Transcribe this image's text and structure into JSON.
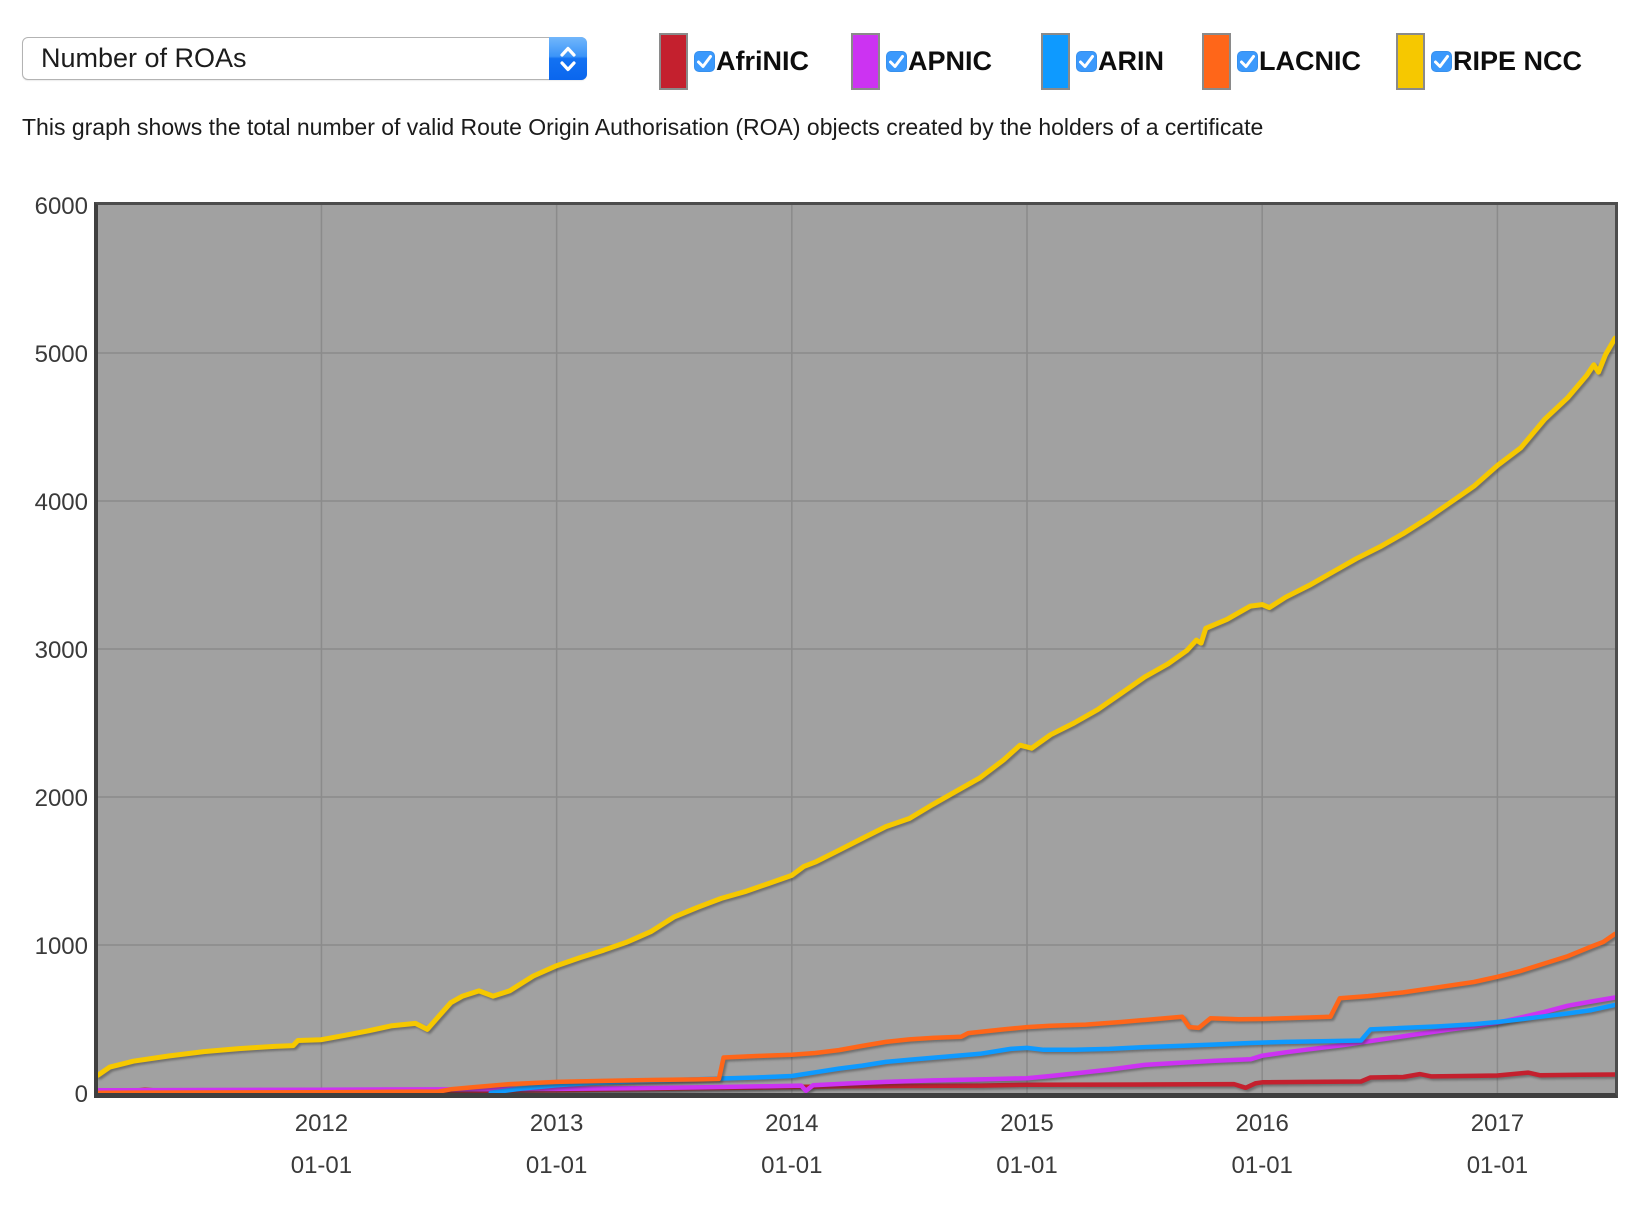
{
  "controls": {
    "metric_select_value": "Number of ROAs"
  },
  "icons": {
    "select_stepper": "up-down-chevrons",
    "checkbox_glyph": "checkmark"
  },
  "description": "This graph shows the total number of valid Route Origin Authorisation (ROA) objects created by the holders of a certificate",
  "legend": [
    {
      "label": "AfriNIC",
      "color": "#c4202e",
      "checked": true
    },
    {
      "label": "APNIC",
      "color": "#cc33f2",
      "checked": true
    },
    {
      "label": "ARIN",
      "color": "#0e9aff",
      "checked": true
    },
    {
      "label": "LACNIC",
      "color": "#ff6619",
      "checked": true
    },
    {
      "label": "RIPE NCC",
      "color": "#f6c800",
      "checked": true
    }
  ],
  "checkbox_color": "#3b99fc",
  "chart_data": {
    "type": "line",
    "title": "Number of ROAs",
    "xlabel": "",
    "ylabel": "",
    "ylim": [
      0,
      6000
    ],
    "xlim": [
      2011.05,
      2017.5
    ],
    "grid": true,
    "plot_bg": "#a1a1a1",
    "grid_color": "#8b8b8b",
    "y_ticks": [
      6000,
      5000,
      4000,
      3000,
      2000,
      1000,
      0
    ],
    "x_ticks": [
      {
        "label": "2012",
        "sub": "01-01",
        "value": 2012
      },
      {
        "label": "2013",
        "sub": "01-01",
        "value": 2013
      },
      {
        "label": "2014",
        "sub": "01-01",
        "value": 2014
      },
      {
        "label": "2015",
        "sub": "01-01",
        "value": 2015
      },
      {
        "label": "2016",
        "sub": "01-01",
        "value": 2016
      },
      {
        "label": "2017",
        "sub": "01-01",
        "value": 2017
      }
    ],
    "series": [
      {
        "name": "AfriNIC",
        "color": "#c4202e",
        "width": 4.5,
        "points": [
          [
            2011.05,
            3
          ],
          [
            2011.15,
            8
          ],
          [
            2011.25,
            22
          ],
          [
            2011.35,
            12
          ],
          [
            2011.6,
            10
          ],
          [
            2012.0,
            10
          ],
          [
            2012.4,
            12
          ],
          [
            2012.7,
            15
          ],
          [
            2013.0,
            18
          ],
          [
            2013.3,
            25
          ],
          [
            2013.6,
            32
          ],
          [
            2013.9,
            38
          ],
          [
            2014.2,
            45
          ],
          [
            2014.5,
            48
          ],
          [
            2014.8,
            50
          ],
          [
            2015.0,
            56
          ],
          [
            2015.3,
            57
          ],
          [
            2015.6,
            58
          ],
          [
            2015.88,
            60
          ],
          [
            2015.93,
            35
          ],
          [
            2015.97,
            65
          ],
          [
            2016.0,
            72
          ],
          [
            2016.2,
            75
          ],
          [
            2016.42,
            78
          ],
          [
            2016.46,
            105
          ],
          [
            2016.6,
            108
          ],
          [
            2016.67,
            128
          ],
          [
            2016.72,
            112
          ],
          [
            2016.85,
            115
          ],
          [
            2017.0,
            118
          ],
          [
            2017.13,
            138
          ],
          [
            2017.18,
            120
          ],
          [
            2017.35,
            123
          ],
          [
            2017.5,
            125
          ]
        ]
      },
      {
        "name": "APNIC",
        "color": "#cc33f2",
        "width": 4.5,
        "points": [
          [
            2011.05,
            18
          ],
          [
            2011.5,
            20
          ],
          [
            2012.0,
            22
          ],
          [
            2012.5,
            24
          ],
          [
            2013.0,
            28
          ],
          [
            2013.3,
            32
          ],
          [
            2013.6,
            38
          ],
          [
            2013.9,
            46
          ],
          [
            2014.04,
            50
          ],
          [
            2014.06,
            15
          ],
          [
            2014.09,
            52
          ],
          [
            2014.25,
            65
          ],
          [
            2014.4,
            75
          ],
          [
            2014.6,
            85
          ],
          [
            2014.8,
            92
          ],
          [
            2015.0,
            100
          ],
          [
            2015.1,
            115
          ],
          [
            2015.2,
            132
          ],
          [
            2015.35,
            158
          ],
          [
            2015.5,
            190
          ],
          [
            2015.65,
            205
          ],
          [
            2015.8,
            218
          ],
          [
            2015.95,
            228
          ],
          [
            2016.0,
            252
          ],
          [
            2016.1,
            275
          ],
          [
            2016.2,
            295
          ],
          [
            2016.35,
            325
          ],
          [
            2016.5,
            360
          ],
          [
            2016.65,
            395
          ],
          [
            2016.8,
            430
          ],
          [
            2016.9,
            450
          ],
          [
            2017.0,
            475
          ],
          [
            2017.1,
            510
          ],
          [
            2017.2,
            548
          ],
          [
            2017.3,
            590
          ],
          [
            2017.4,
            618
          ],
          [
            2017.5,
            645
          ]
        ]
      },
      {
        "name": "ARIN",
        "color": "#0e9aff",
        "width": 4.5,
        "points": [
          [
            2012.72,
            2
          ],
          [
            2012.78,
            15
          ],
          [
            2012.85,
            30
          ],
          [
            2013.0,
            52
          ],
          [
            2013.15,
            68
          ],
          [
            2013.3,
            78
          ],
          [
            2013.5,
            88
          ],
          [
            2013.7,
            98
          ],
          [
            2013.85,
            105
          ],
          [
            2014.0,
            115
          ],
          [
            2014.1,
            140
          ],
          [
            2014.2,
            165
          ],
          [
            2014.3,
            185
          ],
          [
            2014.4,
            210
          ],
          [
            2014.5,
            225
          ],
          [
            2014.65,
            245
          ],
          [
            2014.8,
            265
          ],
          [
            2014.93,
            298
          ],
          [
            2015.0,
            305
          ],
          [
            2015.07,
            292
          ],
          [
            2015.2,
            292
          ],
          [
            2015.35,
            298
          ],
          [
            2015.5,
            310
          ],
          [
            2015.65,
            318
          ],
          [
            2015.8,
            328
          ],
          [
            2015.95,
            338
          ],
          [
            2016.1,
            345
          ],
          [
            2016.25,
            350
          ],
          [
            2016.42,
            355
          ],
          [
            2016.46,
            430
          ],
          [
            2016.6,
            440
          ],
          [
            2016.75,
            450
          ],
          [
            2016.9,
            465
          ],
          [
            2017.0,
            480
          ],
          [
            2017.1,
            498
          ],
          [
            2017.2,
            518
          ],
          [
            2017.3,
            538
          ],
          [
            2017.4,
            560
          ],
          [
            2017.5,
            595
          ]
        ]
      },
      {
        "name": "LACNIC",
        "color": "#ff6619",
        "width": 4.5,
        "points": [
          [
            2011.05,
            2
          ],
          [
            2012.0,
            5
          ],
          [
            2012.5,
            10
          ],
          [
            2012.55,
            25
          ],
          [
            2012.65,
            40
          ],
          [
            2012.8,
            60
          ],
          [
            2013.0,
            75
          ],
          [
            2013.2,
            82
          ],
          [
            2013.4,
            88
          ],
          [
            2013.6,
            92
          ],
          [
            2013.69,
            95
          ],
          [
            2013.71,
            240
          ],
          [
            2013.85,
            250
          ],
          [
            2014.0,
            258
          ],
          [
            2014.1,
            270
          ],
          [
            2014.2,
            290
          ],
          [
            2014.3,
            318
          ],
          [
            2014.4,
            345
          ],
          [
            2014.5,
            362
          ],
          [
            2014.6,
            372
          ],
          [
            2014.72,
            380
          ],
          [
            2014.75,
            405
          ],
          [
            2014.9,
            430
          ],
          [
            2015.0,
            445
          ],
          [
            2015.1,
            455
          ],
          [
            2015.25,
            462
          ],
          [
            2015.4,
            480
          ],
          [
            2015.55,
            500
          ],
          [
            2015.66,
            515
          ],
          [
            2015.69,
            445
          ],
          [
            2015.73,
            440
          ],
          [
            2015.78,
            505
          ],
          [
            2015.9,
            498
          ],
          [
            2016.0,
            500
          ],
          [
            2016.1,
            505
          ],
          [
            2016.2,
            510
          ],
          [
            2016.29,
            515
          ],
          [
            2016.33,
            640
          ],
          [
            2016.45,
            655
          ],
          [
            2016.6,
            680
          ],
          [
            2016.75,
            715
          ],
          [
            2016.9,
            750
          ],
          [
            2017.0,
            785
          ],
          [
            2017.1,
            825
          ],
          [
            2017.2,
            875
          ],
          [
            2017.3,
            925
          ],
          [
            2017.4,
            990
          ],
          [
            2017.45,
            1020
          ],
          [
            2017.5,
            1075
          ]
        ]
      },
      {
        "name": "RIPE NCC",
        "color": "#f6c800",
        "width": 5,
        "points": [
          [
            2011.05,
            120
          ],
          [
            2011.1,
            175
          ],
          [
            2011.2,
            215
          ],
          [
            2011.35,
            250
          ],
          [
            2011.5,
            280
          ],
          [
            2011.65,
            300
          ],
          [
            2011.8,
            315
          ],
          [
            2011.88,
            320
          ],
          [
            2011.9,
            355
          ],
          [
            2012.0,
            360
          ],
          [
            2012.1,
            390
          ],
          [
            2012.2,
            420
          ],
          [
            2012.3,
            455
          ],
          [
            2012.4,
            470
          ],
          [
            2012.45,
            430
          ],
          [
            2012.5,
            520
          ],
          [
            2012.55,
            610
          ],
          [
            2012.6,
            655
          ],
          [
            2012.67,
            690
          ],
          [
            2012.73,
            655
          ],
          [
            2012.8,
            690
          ],
          [
            2012.9,
            790
          ],
          [
            2013.0,
            860
          ],
          [
            2013.1,
            915
          ],
          [
            2013.2,
            965
          ],
          [
            2013.3,
            1020
          ],
          [
            2013.4,
            1090
          ],
          [
            2013.5,
            1190
          ],
          [
            2013.6,
            1255
          ],
          [
            2013.7,
            1315
          ],
          [
            2013.8,
            1360
          ],
          [
            2013.9,
            1415
          ],
          [
            2014.0,
            1470
          ],
          [
            2014.05,
            1530
          ],
          [
            2014.1,
            1560
          ],
          [
            2014.2,
            1640
          ],
          [
            2014.3,
            1720
          ],
          [
            2014.4,
            1800
          ],
          [
            2014.5,
            1855
          ],
          [
            2014.6,
            1950
          ],
          [
            2014.7,
            2040
          ],
          [
            2014.8,
            2130
          ],
          [
            2014.9,
            2250
          ],
          [
            2014.97,
            2350
          ],
          [
            2015.02,
            2330
          ],
          [
            2015.1,
            2420
          ],
          [
            2015.2,
            2500
          ],
          [
            2015.3,
            2590
          ],
          [
            2015.4,
            2700
          ],
          [
            2015.5,
            2810
          ],
          [
            2015.6,
            2900
          ],
          [
            2015.68,
            2990
          ],
          [
            2015.72,
            3060
          ],
          [
            2015.74,
            3040
          ],
          [
            2015.76,
            3140
          ],
          [
            2015.85,
            3200
          ],
          [
            2015.95,
            3290
          ],
          [
            2016.0,
            3300
          ],
          [
            2016.03,
            3280
          ],
          [
            2016.1,
            3350
          ],
          [
            2016.2,
            3430
          ],
          [
            2016.3,
            3520
          ],
          [
            2016.4,
            3610
          ],
          [
            2016.5,
            3690
          ],
          [
            2016.6,
            3780
          ],
          [
            2016.7,
            3880
          ],
          [
            2016.8,
            3990
          ],
          [
            2016.9,
            4100
          ],
          [
            2017.0,
            4240
          ],
          [
            2017.1,
            4360
          ],
          [
            2017.2,
            4550
          ],
          [
            2017.3,
            4700
          ],
          [
            2017.38,
            4850
          ],
          [
            2017.41,
            4920
          ],
          [
            2017.43,
            4870
          ],
          [
            2017.46,
            4990
          ],
          [
            2017.5,
            5100
          ]
        ]
      }
    ]
  }
}
